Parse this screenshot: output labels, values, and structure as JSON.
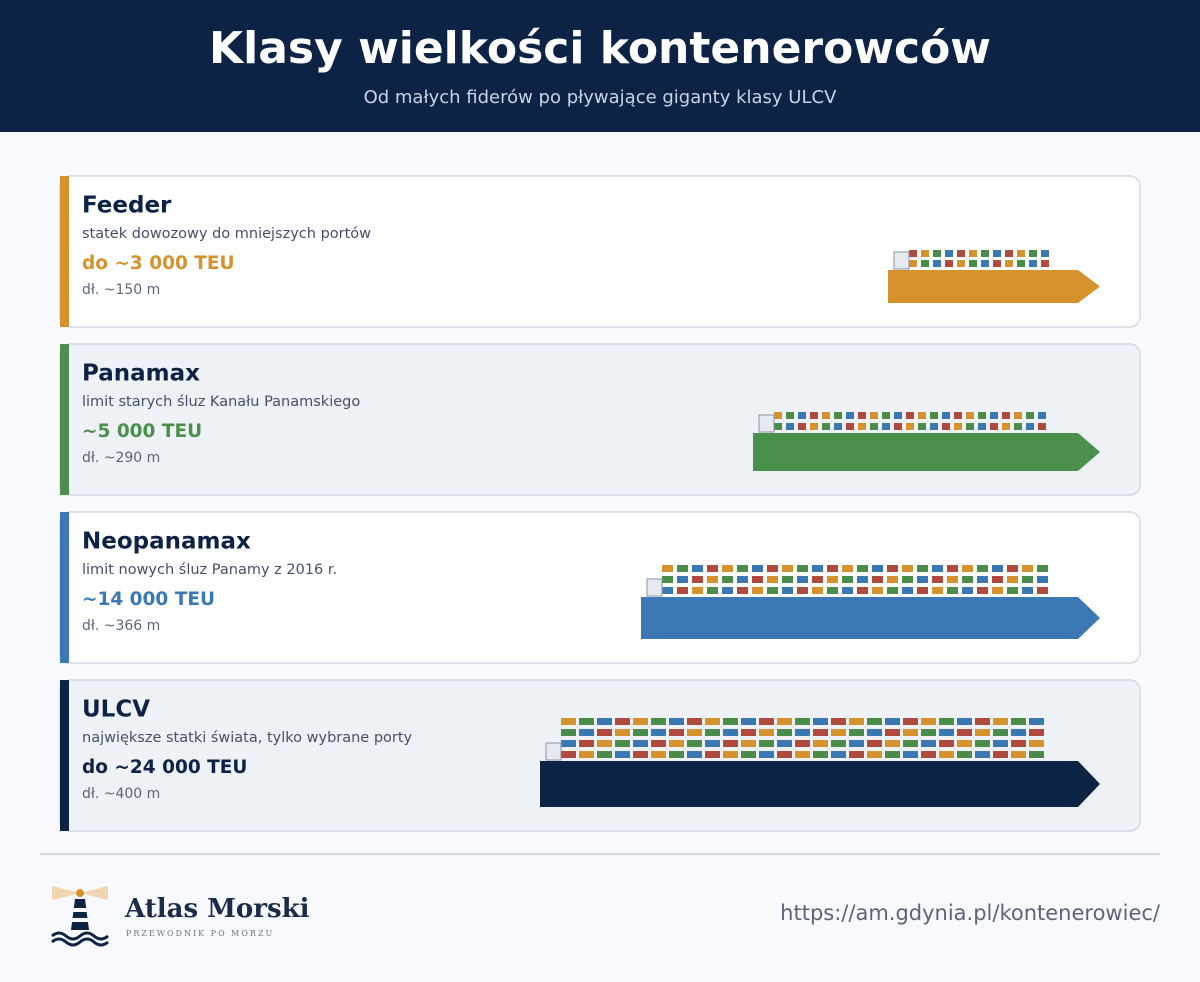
{
  "header": {
    "title": "Klasy wielkości kontenerowców",
    "subtitle": "Od małych fiderów po pływające giganty klasy ULCV"
  },
  "cards": [
    {
      "name": "Feeder",
      "description": "statek dowozowy do mniejszych portów",
      "capacity": "do ~3 000 TEU",
      "length": "dł. ~150 m",
      "color": "#d6922c"
    },
    {
      "name": "Panamax",
      "description": "limit starych śluz Kanału Panamskiego",
      "capacity": "~5 000 TEU",
      "length": "dł. ~290 m",
      "color": "#4a8f4c"
    },
    {
      "name": "Neopanamax",
      "description": "limit nowych śluz Panamy z 2016 r.",
      "capacity": "~14 000 TEU",
      "length": "dł. ~366 m",
      "color": "#3b78b4"
    },
    {
      "name": "ULCV",
      "description": "największe statki świata, tylko wybrane porty",
      "capacity": "do ~24 000 TEU",
      "length": "dł. ~400 m",
      "color": "#0d2346"
    }
  ],
  "footer": {
    "brand": "Atlas Morski",
    "tagline": "PRZEWODNIK PO MORZU",
    "url": "https://am.gdynia.pl/kontenerowiec/"
  }
}
